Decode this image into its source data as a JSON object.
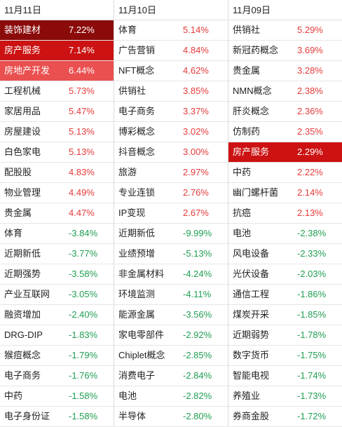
{
  "colors": {
    "up": "#e63a3a",
    "down": "#1f9e52"
  },
  "columns": [
    {
      "date": "11月11日",
      "rows": [
        {
          "name": "装饰建材",
          "change": "7.22%",
          "dir": "up",
          "highlight": "#8b0a0a"
        },
        {
          "name": "房产服务",
          "change": "7.14%",
          "dir": "up",
          "highlight": "#cc1212"
        },
        {
          "name": "房地产开发",
          "change": "6.44%",
          "dir": "up",
          "highlight": "#ea5050"
        },
        {
          "name": "工程机械",
          "change": "5.73%",
          "dir": "up"
        },
        {
          "name": "家居用品",
          "change": "5.47%",
          "dir": "up"
        },
        {
          "name": "房屋建设",
          "change": "5.13%",
          "dir": "up"
        },
        {
          "name": "白色家电",
          "change": "5.13%",
          "dir": "up"
        },
        {
          "name": "配股股",
          "change": "4.83%",
          "dir": "up"
        },
        {
          "name": "物业管理",
          "change": "4.49%",
          "dir": "up"
        },
        {
          "name": "贵金属",
          "change": "4.47%",
          "dir": "up"
        },
        {
          "name": "体育",
          "change": "-3.84%",
          "dir": "down"
        },
        {
          "name": "近期新低",
          "change": "-3.77%",
          "dir": "down"
        },
        {
          "name": "近期强势",
          "change": "-3.58%",
          "dir": "down"
        },
        {
          "name": "产业互联网",
          "change": "-3.05%",
          "dir": "down"
        },
        {
          "name": "融资增加",
          "change": "-2.40%",
          "dir": "down"
        },
        {
          "name": "DRG-DIP",
          "change": "-1.83%",
          "dir": "down"
        },
        {
          "name": "猴痘概念",
          "change": "-1.79%",
          "dir": "down"
        },
        {
          "name": "电子商务",
          "change": "-1.76%",
          "dir": "down"
        },
        {
          "name": "中药",
          "change": "-1.58%",
          "dir": "down"
        },
        {
          "name": "电子身份证",
          "change": "-1.58%",
          "dir": "down"
        }
      ]
    },
    {
      "date": "11月10日",
      "rows": [
        {
          "name": "体育",
          "change": "5.14%",
          "dir": "up"
        },
        {
          "name": "广告营销",
          "change": "4.84%",
          "dir": "up"
        },
        {
          "name": "NFT概念",
          "change": "4.62%",
          "dir": "up"
        },
        {
          "name": "供销社",
          "change": "3.85%",
          "dir": "up"
        },
        {
          "name": "电子商务",
          "change": "3.37%",
          "dir": "up"
        },
        {
          "name": "博彩概念",
          "change": "3.02%",
          "dir": "up"
        },
        {
          "name": "抖音概念",
          "change": "3.00%",
          "dir": "up"
        },
        {
          "name": "旅游",
          "change": "2.97%",
          "dir": "up"
        },
        {
          "name": "专业连锁",
          "change": "2.76%",
          "dir": "up"
        },
        {
          "name": "IP变现",
          "change": "2.67%",
          "dir": "up"
        },
        {
          "name": "近期新低",
          "change": "-9.99%",
          "dir": "down"
        },
        {
          "name": "业绩预增",
          "change": "-5.13%",
          "dir": "down"
        },
        {
          "name": "非金属材料",
          "change": "-4.24%",
          "dir": "down"
        },
        {
          "name": "环境监测",
          "change": "-4.11%",
          "dir": "down"
        },
        {
          "name": "能源金属",
          "change": "-3.56%",
          "dir": "down"
        },
        {
          "name": "家电零部件",
          "change": "-2.92%",
          "dir": "down"
        },
        {
          "name": "Chiplet概念",
          "change": "-2.85%",
          "dir": "down"
        },
        {
          "name": "消费电子",
          "change": "-2.84%",
          "dir": "down"
        },
        {
          "name": "电池",
          "change": "-2.82%",
          "dir": "down"
        },
        {
          "name": "半导体",
          "change": "-2.80%",
          "dir": "down"
        }
      ]
    },
    {
      "date": "11月09日",
      "rows": [
        {
          "name": "供销社",
          "change": "5.29%",
          "dir": "up"
        },
        {
          "name": "新冠药概念",
          "change": "3.69%",
          "dir": "up"
        },
        {
          "name": "贵金属",
          "change": "3.28%",
          "dir": "up"
        },
        {
          "name": "NMN概念",
          "change": "2.38%",
          "dir": "up"
        },
        {
          "name": "肝炎概念",
          "change": "2.36%",
          "dir": "up"
        },
        {
          "name": "仿制药",
          "change": "2.35%",
          "dir": "up"
        },
        {
          "name": "房产服务",
          "change": "2.29%",
          "dir": "up",
          "highlight": "#cc1212"
        },
        {
          "name": "中药",
          "change": "2.22%",
          "dir": "up"
        },
        {
          "name": "幽门螺杆菌",
          "change": "2.14%",
          "dir": "up"
        },
        {
          "name": "抗癌",
          "change": "2.13%",
          "dir": "up"
        },
        {
          "name": "电池",
          "change": "-2.38%",
          "dir": "down"
        },
        {
          "name": "风电设备",
          "change": "-2.33%",
          "dir": "down"
        },
        {
          "name": "光伏设备",
          "change": "-2.03%",
          "dir": "down"
        },
        {
          "name": "通信工程",
          "change": "-1.86%",
          "dir": "down"
        },
        {
          "name": "煤炭开采",
          "change": "-1.85%",
          "dir": "down"
        },
        {
          "name": "近期弱势",
          "change": "-1.78%",
          "dir": "down"
        },
        {
          "name": "数字货币",
          "change": "-1.75%",
          "dir": "down"
        },
        {
          "name": "智能电视",
          "change": "-1.74%",
          "dir": "down"
        },
        {
          "name": "养殖业",
          "change": "-1.73%",
          "dir": "down"
        },
        {
          "name": "券商金股",
          "change": "-1.72%",
          "dir": "down"
        }
      ]
    }
  ]
}
